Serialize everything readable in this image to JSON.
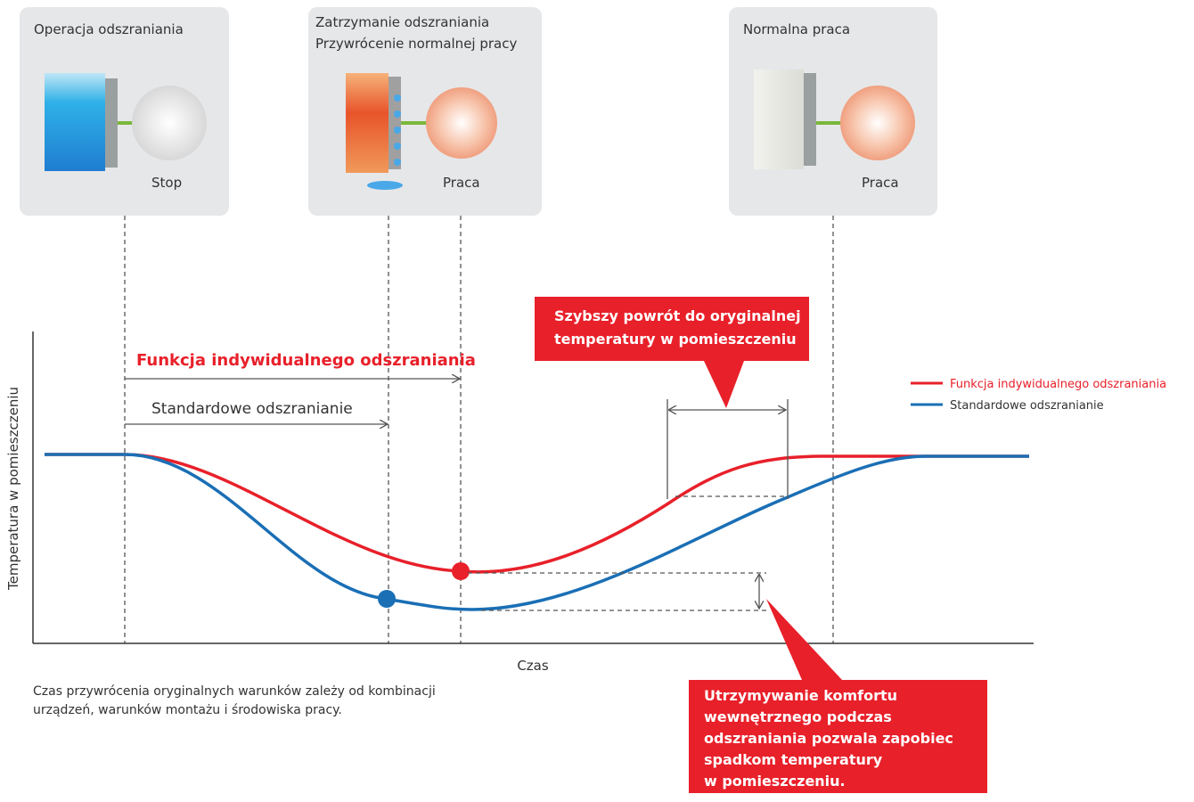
{
  "panels": [
    {
      "title_lines": [
        "Operacja odszraniania"
      ],
      "status": "Stop"
    },
    {
      "title_lines": [
        "Zatrzymanie odszraniania",
        "Przywrócenie normalnej pracy"
      ],
      "status": "Praca"
    },
    {
      "title_lines": [
        "Normalna praca"
      ],
      "status": "Praca"
    }
  ],
  "arrows": {
    "individual": "Funkcja indywidualnego odszraniania",
    "standard": "Standardowe odszranianie"
  },
  "axes": {
    "y": "Temperatura w pomieszczeniu",
    "x": "Czas"
  },
  "legend": [
    {
      "name": "Funkcja indywidualnego odszraniania",
      "color": "#e8202a"
    },
    {
      "name": "Standardowe odszranianie",
      "color": "#1a6fb5"
    }
  ],
  "callouts": {
    "top": [
      "Szybszy powrót do oryginalnej",
      "temperatury w pomieszczeniu"
    ],
    "bottom": [
      "Utrzymywanie komfortu",
      "wewnętrznego podczas",
      "odszraniania pozwala zapobiec",
      "spadkom temperatury",
      "w pomieszczeniu."
    ]
  },
  "note": [
    "Czas przywrócenia oryginalnych warunków zależy od kombinacji",
    "urządzeń, warunków montażu i środowiska pracy."
  ]
}
